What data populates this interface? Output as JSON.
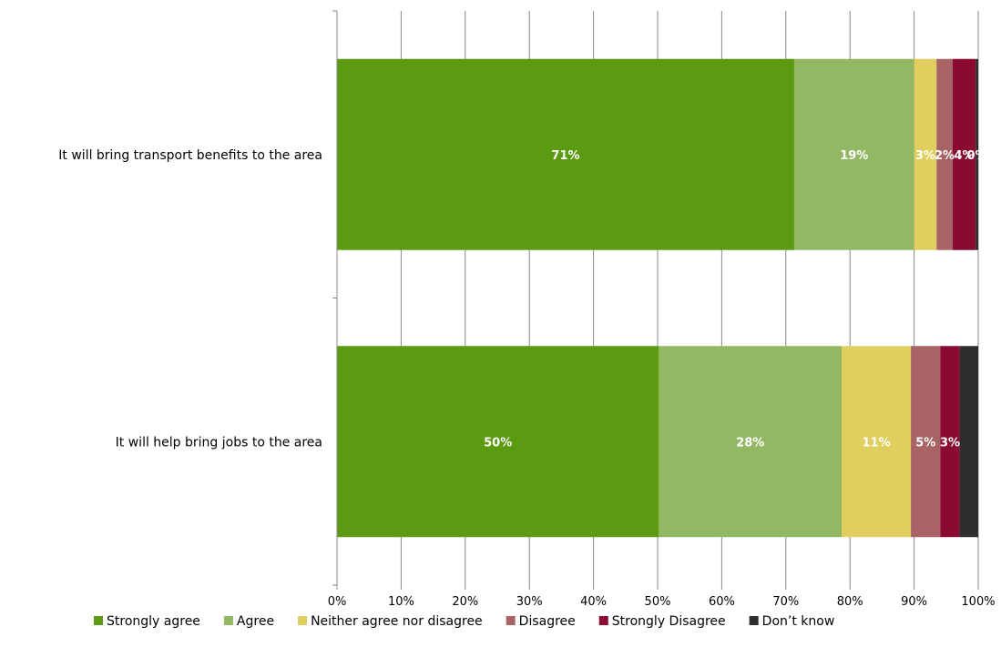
{
  "chart_data": {
    "type": "bar",
    "orientation": "horizontal",
    "stacked": true,
    "percent_stacked": true,
    "categories": [
      "It will bring transport benefits to the area",
      "It will help bring jobs to the area"
    ],
    "series": [
      {
        "name": "Strongly agree",
        "values": [
          71.3,
          50.2
        ],
        "labels": [
          "71%",
          "50%"
        ],
        "color": "#5b9a11"
      },
      {
        "name": "Agree",
        "values": [
          18.7,
          28.5
        ],
        "labels": [
          "19%",
          "28%"
        ],
        "color": "#92b863"
      },
      {
        "name": "Neither agree nor disagree",
        "values": [
          3.5,
          10.8
        ],
        "labels": [
          "3%",
          "11%"
        ],
        "color": "#e0cf5e"
      },
      {
        "name": "Disagree",
        "values": [
          2.5,
          4.6
        ],
        "labels": [
          "2%",
          "5%"
        ],
        "color": "#a86364"
      },
      {
        "name": "Strongly Disagree",
        "values": [
          3.6,
          3.0
        ],
        "labels": [
          "4%",
          "3%"
        ],
        "color": "#8b0a31"
      },
      {
        "name": "Don’t know",
        "values": [
          0.4,
          2.9
        ],
        "labels": [
          "0%",
          ""
        ],
        "color": "#2e2e2e"
      }
    ],
    "xaxis": {
      "ticks": [
        "0%",
        "10%",
        "20%",
        "30%",
        "40%",
        "50%",
        "60%",
        "70%",
        "80%",
        "90%",
        "100%"
      ],
      "range": [
        0,
        100
      ]
    },
    "grid": true,
    "legend": "bottom"
  }
}
